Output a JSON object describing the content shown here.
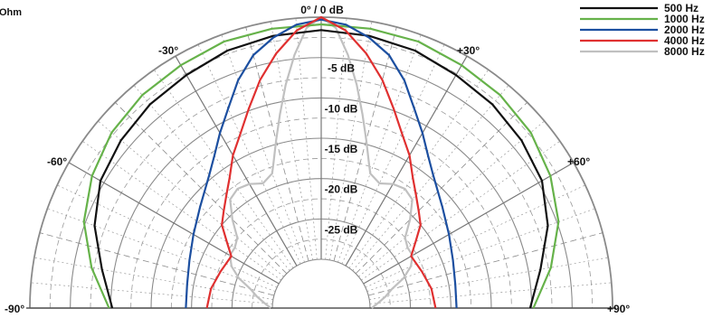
{
  "corner_label": "Ohm",
  "chart_data": {
    "type": "polar",
    "title": "",
    "radial_unit": "dB",
    "radial_ticks": [
      {
        "value": 0,
        "label": "0° / 0 dB"
      },
      {
        "value": -5,
        "label": "-5 dB"
      },
      {
        "value": -10,
        "label": "-10 dB"
      },
      {
        "value": -15,
        "label": "-15 dB"
      },
      {
        "value": -20,
        "label": "-20 dB"
      },
      {
        "value": -25,
        "label": "-25 dB"
      }
    ],
    "radial_range": [
      -30,
      0
    ],
    "angle_range": [
      -90,
      90
    ],
    "angle_labels": [
      {
        "angle": -90,
        "label": "-90°"
      },
      {
        "angle": -60,
        "label": "-60°"
      },
      {
        "angle": -30,
        "label": "-30°"
      },
      {
        "angle": 30,
        "label": "+30°"
      },
      {
        "angle": 60,
        "label": "+60°"
      },
      {
        "angle": 90,
        "label": "+90°"
      }
    ],
    "grid": true,
    "legend_position": "top-right",
    "series": [
      {
        "name": "500 Hz",
        "color": "#111111",
        "angles": [
          0,
          10,
          20,
          30,
          40,
          50,
          60,
          70,
          80,
          90
        ],
        "values": [
          -1.6,
          -1.8,
          -2.1,
          -2.7,
          -3.1,
          -3.7,
          -4.5,
          -6.2,
          -8.5,
          -10.2
        ]
      },
      {
        "name": "1000 Hz",
        "color": "#66b24a",
        "angles": [
          0,
          10,
          20,
          30,
          40,
          50,
          60,
          70,
          80,
          90
        ],
        "values": [
          -0.9,
          -0.9,
          -0.9,
          -1.3,
          -1.6,
          -2.2,
          -3.3,
          -4.8,
          -7.2,
          -9.8
        ]
      },
      {
        "name": "2000 Hz",
        "color": "#1c4fa0",
        "angles": [
          0,
          5,
          10,
          15,
          20,
          25,
          30,
          35,
          40,
          50,
          60,
          70,
          80,
          90
        ],
        "values": [
          -0.3,
          -0.8,
          -2.0,
          -3.6,
          -6.0,
          -8.8,
          -11.0,
          -13.0,
          -14.5,
          -16.5,
          -17.8,
          -18.7,
          -19.2,
          -19.3
        ]
      },
      {
        "name": "4000 Hz",
        "color": "#e03030",
        "angles": [
          0,
          5,
          10,
          15,
          20,
          25,
          30,
          35,
          40,
          45,
          50,
          55,
          60,
          70,
          80,
          90
        ],
        "values": [
          0,
          -1.5,
          -4.0,
          -6.8,
          -9.8,
          -12.3,
          -14.2,
          -16.3,
          -17.8,
          -19.0,
          -20.0,
          -21.8,
          -23.2,
          -22.8,
          -22.2,
          -21.9
        ]
      },
      {
        "name": "8000 Hz",
        "color": "#c0c0c0",
        "angles": [
          0,
          3,
          6,
          9,
          12,
          15,
          18,
          20,
          25,
          30,
          35,
          40,
          45,
          50,
          55,
          60,
          65,
          70,
          75,
          80,
          85,
          90
        ],
        "values": [
          0,
          -1.3,
          -4.5,
          -8.0,
          -11.5,
          -14.5,
          -17.0,
          -18.3,
          -19.0,
          -18.3,
          -18.0,
          -18.5,
          -20.5,
          -22.5,
          -23.0,
          -23.0,
          -23.8,
          -25.2,
          -27.0,
          -28.0,
          -29.0,
          -29.8
        ]
      }
    ]
  }
}
